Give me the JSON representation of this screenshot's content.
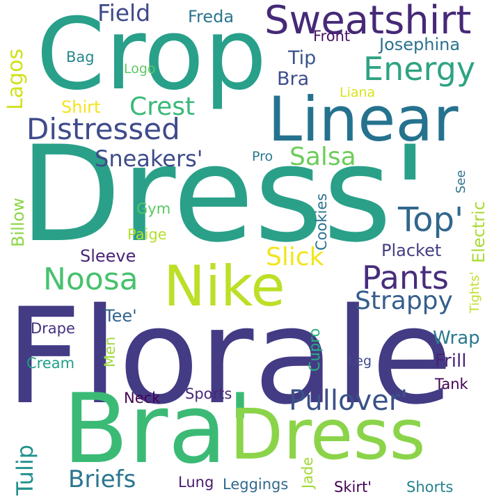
{
  "background": "#ffffff",
  "words": {
    "dress_big": "Dress'",
    "florale": "Florale",
    "crop": "Crop",
    "bra_big": "Bra'",
    "dress_small": "Dress",
    "linear": "Linear",
    "nike": "Nike",
    "sweatshirt": "Sweatshirt",
    "distressed": "Distressed",
    "energy": "Energy",
    "pullover": "Pullover'",
    "pants": "Pants",
    "noosa": "Noosa",
    "top": "Top'",
    "strappy": "Strappy",
    "briefs": "Briefs",
    "slick": "Slick",
    "crest": "Crest",
    "field": "Field",
    "salsa": "Salsa",
    "sneakers": "Sneakers'",
    "tulip": "Tulip",
    "freda": "Freda",
    "josephina": "Josephina",
    "front": "Front",
    "bag": "Bag",
    "logo": "Logo",
    "tip": "Tip",
    "bra_small": "Bra",
    "liana": "Liana",
    "shirt": "Shirt",
    "pro": "Pro",
    "gym": "Gym",
    "paige": "Paige",
    "sleeve": "Sleeve",
    "placket": "Placket",
    "tee": "Tee'",
    "drape": "Drape",
    "cream": "Cream",
    "wrap": "Wrap",
    "frill": "Frill",
    "leg": "Leg",
    "tank": "Tank",
    "neck": "Neck",
    "sports": "Sports",
    "lung": "Lung",
    "leggings": "Leggings",
    "skirt": "Skirt'",
    "shorts": "Shorts",
    "lagos": "Lagos",
    "billow": "Billow",
    "cookies": "Cookies",
    "see": "See",
    "electric": "Electric",
    "tights": "Tights'",
    "cupro": "Cupro",
    "men": "Men",
    "jade": "Jade"
  }
}
